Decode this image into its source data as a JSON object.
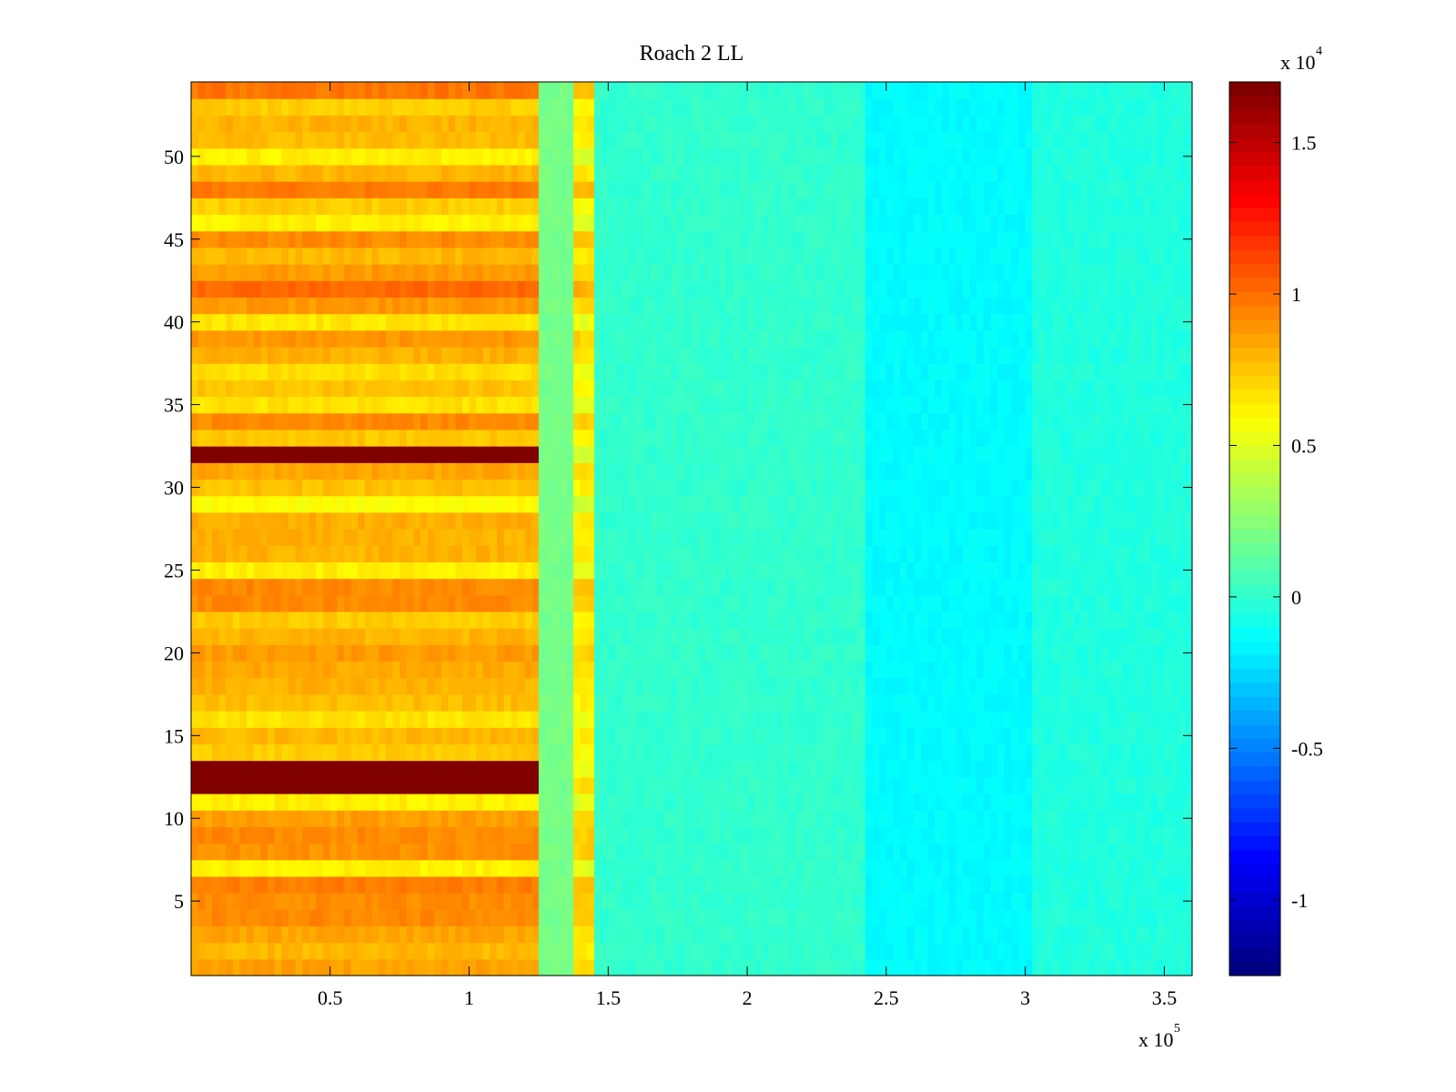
{
  "chart_data": {
    "type": "heatmap",
    "title": "Roach 2 LL",
    "xlabel": "",
    "ylabel": "",
    "x_multiplier": "x 10",
    "x_multiplier_exponent": "5",
    "xlim": [
      0,
      3.6
    ],
    "ylim": [
      0.5,
      54.5
    ],
    "x_ticks": [
      0.5,
      1,
      1.5,
      2,
      2.5,
      3,
      3.5
    ],
    "x_tick_labels": [
      "0.5",
      "1",
      "1.5",
      "2",
      "2.5",
      "3",
      "3.5"
    ],
    "y_ticks": [
      5,
      10,
      15,
      20,
      25,
      30,
      35,
      40,
      45,
      50
    ],
    "y_tick_labels": [
      "5",
      "10",
      "15",
      "20",
      "25",
      "30",
      "35",
      "40",
      "45",
      "50"
    ],
    "colorbar": {
      "colormap": "jet",
      "multiplier": "x 10",
      "multiplier_exponent": "4",
      "range": [
        -1.25,
        1.7
      ],
      "ticks": [
        -1,
        -0.5,
        0,
        0.5,
        1,
        1.5
      ],
      "tick_labels": [
        "-1",
        "-0.5",
        "0",
        "0.5",
        "1",
        "1.5"
      ]
    },
    "regions": [
      {
        "x_range": [
          0,
          1.26
        ],
        "description": "high values, 0.5 to 1.0 (x10^4)",
        "typical_value": 0.75
      },
      {
        "x_range": [
          1.26,
          1.37
        ],
        "description": "transition band",
        "typical_value": 0.2
      },
      {
        "x_range": [
          1.37,
          1.46
        ],
        "description": "moderate values",
        "typical_value": 0.6
      },
      {
        "x_range": [
          1.46,
          2.42
        ],
        "description": "near zero",
        "typical_value": 0.0
      },
      {
        "x_range": [
          2.42,
          3.02
        ],
        "description": "slightly negative",
        "typical_value": -0.15
      },
      {
        "x_range": [
          3.02,
          3.6
        ],
        "description": "near zero",
        "typical_value": -0.05
      }
    ],
    "saturated_rows": [
      {
        "rows": [
          32
        ],
        "x_range": [
          0,
          1.27
        ],
        "value": 1.7
      },
      {
        "rows": [
          12,
          13
        ],
        "x_range": [
          0,
          1.27
        ],
        "value": 1.7
      }
    ]
  }
}
